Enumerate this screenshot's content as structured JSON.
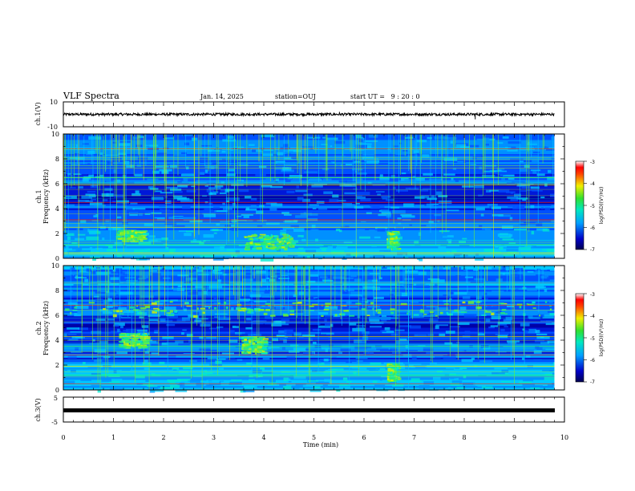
{
  "header": {
    "title": "VLF Spectra",
    "date": "Jan. 14, 2025",
    "station": "station=OUJ",
    "start_ut": "start UT =   9 : 20 : 0"
  },
  "chart_data": [
    {
      "type": "line",
      "name": "ch.1 waveform",
      "ylabel": "ch.1(V)",
      "ylim": [
        -10,
        10
      ],
      "ytick_labels": [
        "10",
        "-10"
      ],
      "x_range": [
        0,
        10
      ],
      "trace_level": 0,
      "trace_amplitude": 1,
      "spikes": [
        {
          "x": 8.22,
          "y": -4
        },
        {
          "x": 5.51,
          "y": 2
        }
      ]
    },
    {
      "type": "heatmap",
      "name": "ch.1 spectrogram",
      "ylabel": "ch.1 Frequency (kHz)",
      "ylabel_line1": "ch.1",
      "ylabel_line2": "Frequency (kHz)",
      "ylim": [
        0,
        10
      ],
      "ytick_labels": [
        "0",
        "2",
        "4",
        "6",
        "8",
        "10"
      ],
      "x_range": [
        0,
        9.8
      ],
      "colorbar": {
        "label": "log(PSD)(V²/Hz)",
        "range": [
          -7,
          -3
        ],
        "tick_labels": [
          "-3",
          "-4",
          "-5",
          "-6",
          "-7"
        ]
      },
      "enhancements": [
        {
          "t0": 3.6,
          "t1": 4.55,
          "f0": 0.8,
          "f1": 2.0
        },
        {
          "t0": 1.05,
          "t1": 1.6,
          "f0": 1.5,
          "f1": 2.3
        },
        {
          "t0": 6.45,
          "t1": 6.62,
          "f0": 0.8,
          "f1": 2.2
        }
      ],
      "strong_lines_khz": [
        4.5,
        5.9,
        6.5,
        3.1,
        2.5,
        1.1,
        8.8,
        0.4
      ]
    },
    {
      "type": "heatmap",
      "name": "ch.2 spectrogram",
      "ylabel": "ch.2 Frequency (kHz)",
      "ylabel_line1": "ch.2",
      "ylabel_line2": "Frequency (kHz)",
      "ylim": [
        0,
        10
      ],
      "ytick_labels": [
        "0",
        "2",
        "4",
        "6",
        "8",
        "10"
      ],
      "x_range": [
        0,
        9.8
      ],
      "colorbar": {
        "label": "log(PSD)(V²/Hz)",
        "range": [
          -7,
          -3
        ],
        "tick_labels": [
          "-3",
          "-4",
          "-5",
          "-6",
          "-7"
        ]
      },
      "enhancements": [
        {
          "t0": 0,
          "t1": 9.8,
          "f0": 6.0,
          "f1": 7.2
        },
        {
          "t0": 1.1,
          "t1": 1.65,
          "f0": 3.5,
          "f1": 4.6
        },
        {
          "t0": 3.55,
          "t1": 4.0,
          "f0": 3.0,
          "f1": 4.3
        },
        {
          "t0": 6.45,
          "t1": 6.62,
          "f0": 0.8,
          "f1": 2.2
        }
      ],
      "strong_lines_khz": [
        6.8,
        4.3,
        3.5,
        2.8,
        1.9,
        1.2,
        0.5
      ]
    },
    {
      "type": "line",
      "name": "ch.3 waveform",
      "ylabel": "ch.3(V)",
      "ylim": [
        -5,
        5
      ],
      "ytick_labels": [
        "5",
        "-5"
      ],
      "x_range": [
        0,
        9.8
      ],
      "trace_level": 0
    }
  ],
  "x_axis": {
    "label": "Time (min)",
    "range": [
      0,
      10
    ],
    "tick_labels": [
      "0",
      "1",
      "2",
      "3",
      "4",
      "5",
      "6",
      "7",
      "8",
      "9",
      "10"
    ]
  },
  "colors": {
    "background": "#ffffff",
    "axis": "#000000",
    "spectrogram_low": "#000080",
    "spectrogram_high": "#ff0000"
  }
}
